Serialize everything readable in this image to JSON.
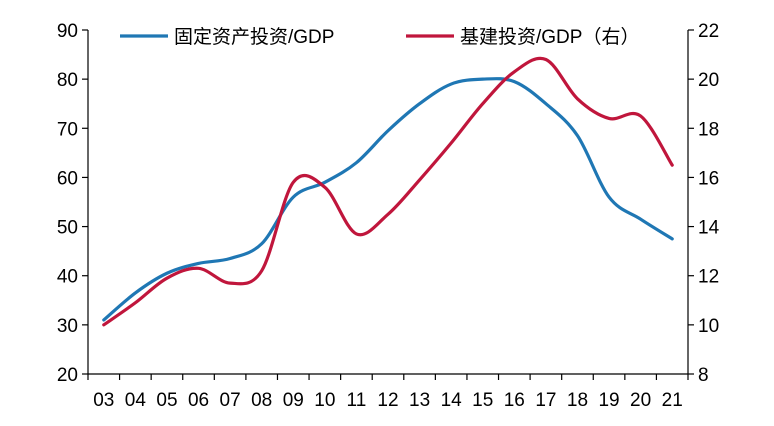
{
  "chart_data": {
    "type": "line",
    "title": "",
    "xlabel": "",
    "ylabel": "",
    "ylabel_right": "",
    "categories": [
      "03",
      "04",
      "05",
      "06",
      "07",
      "08",
      "09",
      "10",
      "11",
      "12",
      "13",
      "14",
      "15",
      "16",
      "17",
      "18",
      "19",
      "20",
      "21"
    ],
    "ylim": [
      20,
      90
    ],
    "yticks": [
      20,
      30,
      40,
      50,
      60,
      70,
      80,
      90
    ],
    "ylim_right": [
      8,
      22
    ],
    "yticks_right": [
      8,
      10,
      12,
      14,
      16,
      18,
      20,
      22
    ],
    "grid": false,
    "legend_position": "top",
    "series": [
      {
        "name": "固定资产投资/GDP",
        "axis": "left",
        "color": "#1f77b4",
        "values": [
          31,
          36.5,
          40.5,
          42.5,
          43.5,
          46.5,
          56,
          59,
          63,
          69.5,
          75,
          79,
          80,
          79.5,
          75,
          68.5,
          56,
          51.5,
          47.5
        ]
      },
      {
        "name": "基建投资/GDP（右）",
        "axis": "right",
        "color": "#c0163c",
        "values": [
          10,
          10.9,
          11.9,
          12.3,
          11.7,
          12.2,
          15.8,
          15.6,
          13.7,
          14.5,
          15.9,
          17.4,
          19,
          20.3,
          20.8,
          19.2,
          18.4,
          18.5,
          16.5
        ]
      }
    ]
  }
}
